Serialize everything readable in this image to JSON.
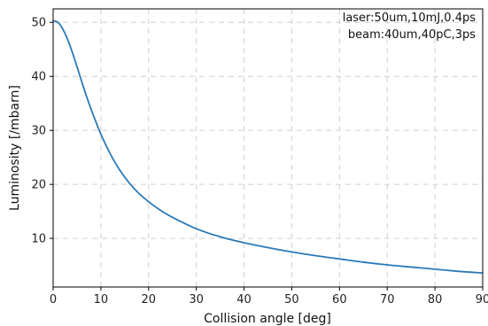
{
  "chart_data": {
    "type": "line",
    "xlabel": "Collision angle [deg]",
    "ylabel": "Luminosity [/mbarn]",
    "xlim": [
      0,
      90
    ],
    "ylim": [
      1,
      52.5
    ],
    "xticks": [
      0,
      10,
      20,
      30,
      40,
      50,
      60,
      70,
      80,
      90
    ],
    "yticks": [
      10,
      20,
      30,
      40,
      50
    ],
    "grid": true,
    "annotations": [
      "laser:50um,10mJ,0.4ps",
      "beam:40um,40pC,3ps"
    ],
    "annotation_position": "top-right",
    "series": [
      {
        "color": "#2a7ab9",
        "x": [
          0,
          1,
          2,
          3,
          4,
          5,
          6,
          7,
          8,
          9,
          10,
          12,
          14,
          16,
          18,
          20,
          22,
          25,
          30,
          35,
          40,
          45,
          50,
          55,
          60,
          65,
          70,
          75,
          80,
          85,
          90
        ],
        "y": [
          50.3,
          50.0,
          48.8,
          46.9,
          44.5,
          41.8,
          39.0,
          36.3,
          33.8,
          31.5,
          29.3,
          25.6,
          22.6,
          20.2,
          18.3,
          16.8,
          15.5,
          13.9,
          11.8,
          10.3,
          9.2,
          8.3,
          7.5,
          6.8,
          6.2,
          5.6,
          5.1,
          4.7,
          4.3,
          3.9,
          3.6
        ]
      }
    ]
  }
}
